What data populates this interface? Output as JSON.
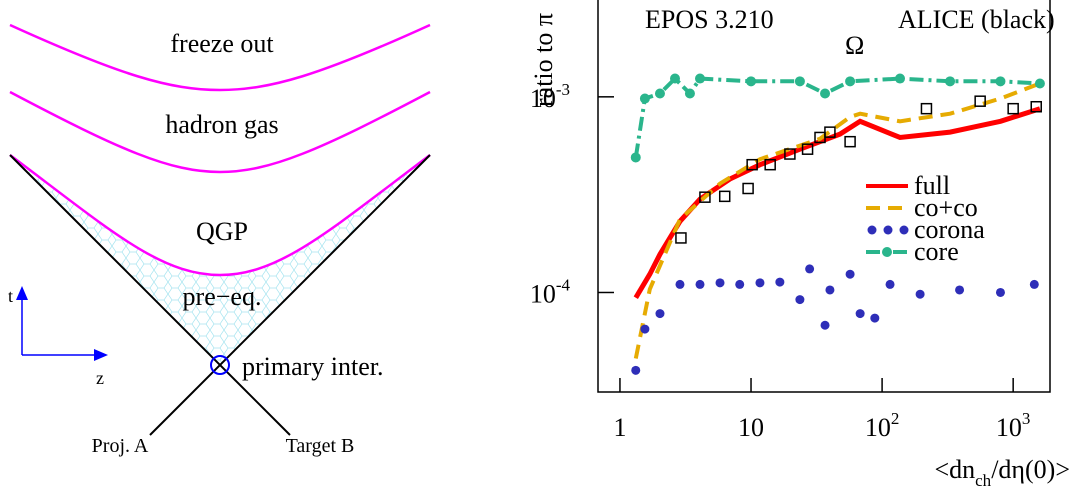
{
  "diagram": {
    "labels": [
      "freeze out",
      "hadron gas",
      "QGP",
      "pre−eq.",
      "primary inter.",
      "Proj. A",
      "Target B",
      "t",
      "z"
    ]
  },
  "chart_data": {
    "type": "line",
    "annotations": [
      "EPOS 3.210",
      "ALICE (black)",
      "Ω"
    ],
    "y_label": "ratio to π",
    "x_label": {
      "main": "<dn",
      "sub": "ch",
      "rest": "/dη(0)>"
    },
    "xscale": "log",
    "yscale": "log",
    "xlim": [
      0.68,
      1910
    ],
    "ylim": [
      3.1e-05,
      0.0032
    ],
    "xticks": [
      1,
      10,
      {
        "value": 100,
        "label": "10",
        "exponent": "2"
      },
      {
        "value": 1000,
        "label": "10",
        "exponent": "3"
      }
    ],
    "yticks": [
      {
        "value": 0.001,
        "label": "10",
        "exponent": "-3"
      },
      {
        "value": 0.0001,
        "label": "10",
        "exponent": "-4"
      }
    ],
    "series": [
      {
        "name": "full",
        "color": "#ff0000",
        "style": "solid",
        "x": [
          1.32,
          1.69,
          2.02,
          2.87,
          4.08,
          6.9,
          11.7,
          23.6,
          47.7,
          68,
          137,
          330,
          800,
          1600
        ],
        "values": [
          9.4e-05,
          0.000124,
          0.000157,
          0.000231,
          0.0003,
          0.00038,
          0.00045,
          0.00054,
          0.000645,
          0.00075,
          0.00062,
          0.00066,
          0.00075,
          0.00087
        ]
      },
      {
        "name": "co+co",
        "color": "#e6ab02",
        "style": "dashed",
        "x": [
          1.32,
          1.69,
          2.87,
          5.8,
          11.7,
          33.6,
          57,
          68,
          137,
          330,
          800,
          1600
        ],
        "values": [
          4.6e-05,
          0.000104,
          0.000237,
          0.00036,
          0.00048,
          0.00061,
          0.00079,
          0.00082,
          0.00075,
          0.00082,
          0.00098,
          0.00117
        ]
      },
      {
        "name": "corona",
        "color": "#2e2eb8",
        "style": "dots",
        "x": [
          1.32,
          1.55,
          2.02,
          2.87,
          4.08,
          5.8,
          8.2,
          11.7,
          16.6,
          23.6,
          28,
          36.7,
          40,
          57,
          68,
          88,
          115,
          195,
          390,
          800,
          1450
        ],
        "values": [
          4e-05,
          6.5e-05,
          7.8e-05,
          0.00011,
          0.00011,
          0.000112,
          0.00011,
          0.000112,
          0.000113,
          9.2e-05,
          0.000132,
          6.8e-05,
          0.000103,
          0.000124,
          7.8e-05,
          7.4e-05,
          0.00011,
          9.8e-05,
          0.000103,
          0.0001,
          0.00011
        ]
      },
      {
        "name": "core",
        "color": "#2ab58c",
        "style": "dashdot",
        "x": [
          1.32,
          1.55,
          2.02,
          2.63,
          3.42,
          4.08,
          10,
          23.6,
          36.7,
          57,
          137,
          330,
          800,
          1600
        ],
        "values": [
          0.00049,
          0.00098,
          0.00104,
          0.00124,
          0.00104,
          0.00124,
          0.0012,
          0.0012,
          0.00104,
          0.0012,
          0.00124,
          0.0012,
          0.0012,
          0.00117
        ]
      }
    ],
    "points": {
      "color": "#000000",
      "x": [
        2.92,
        4.45,
        6.3,
        9.5,
        10.2,
        14,
        19.8,
        27,
        33.6,
        40,
        57,
        218,
        560,
        1000,
        1500
      ],
      "values": [
        0.00019,
        0.000307,
        0.00031,
        0.00034,
        0.00045,
        0.00045,
        0.00051,
        0.00054,
        0.00062,
        0.00066,
        0.00059,
        0.00087,
        0.00095,
        0.00087,
        0.00089
      ]
    }
  }
}
